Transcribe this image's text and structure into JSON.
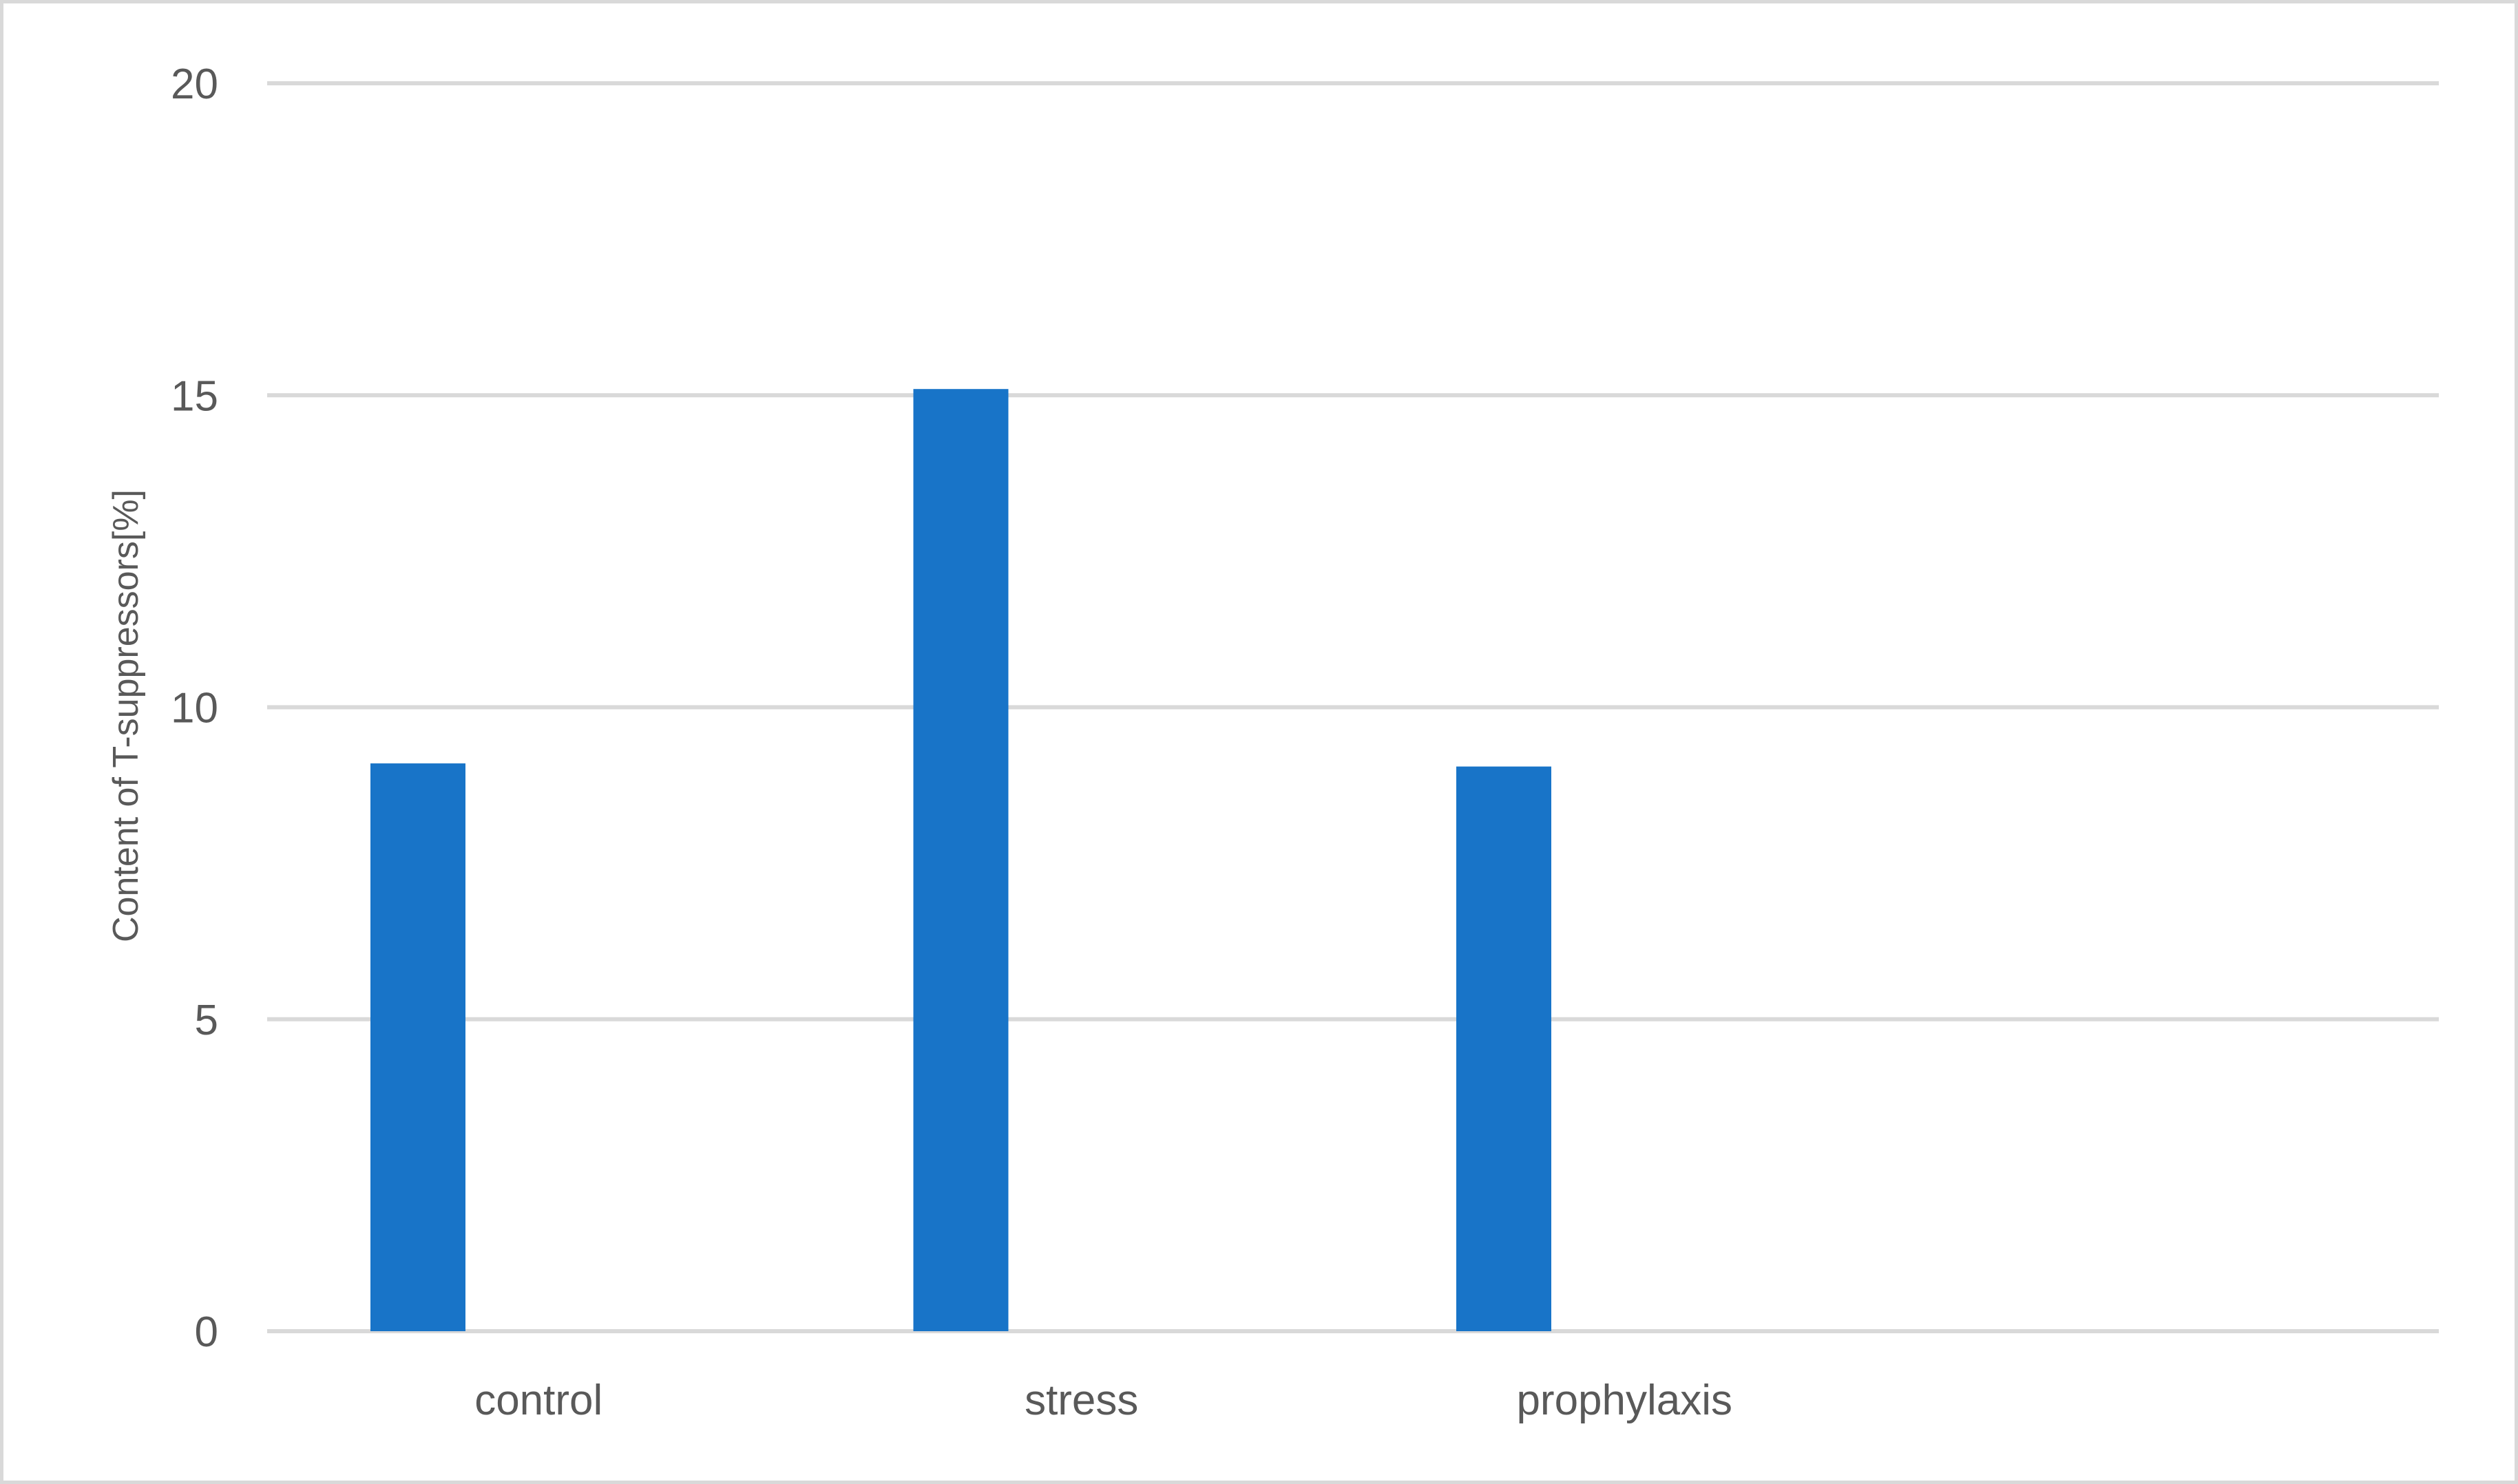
{
  "chart_data": {
    "type": "bar",
    "title": "",
    "xlabel": "",
    "ylabel": "Content of T-suppressors[%]",
    "categories": [
      "control",
      "stress",
      "prophylaxis",
      ""
    ],
    "values": [
      9.1,
      15.1,
      9.05,
      null
    ],
    "ylim": [
      0,
      20
    ],
    "yticks": [
      0,
      5,
      10,
      15,
      20
    ],
    "grid": true,
    "legend": "none",
    "bar_color": "#1874c8",
    "grid_color": "#d9d9d9",
    "text_color": "#595959"
  }
}
